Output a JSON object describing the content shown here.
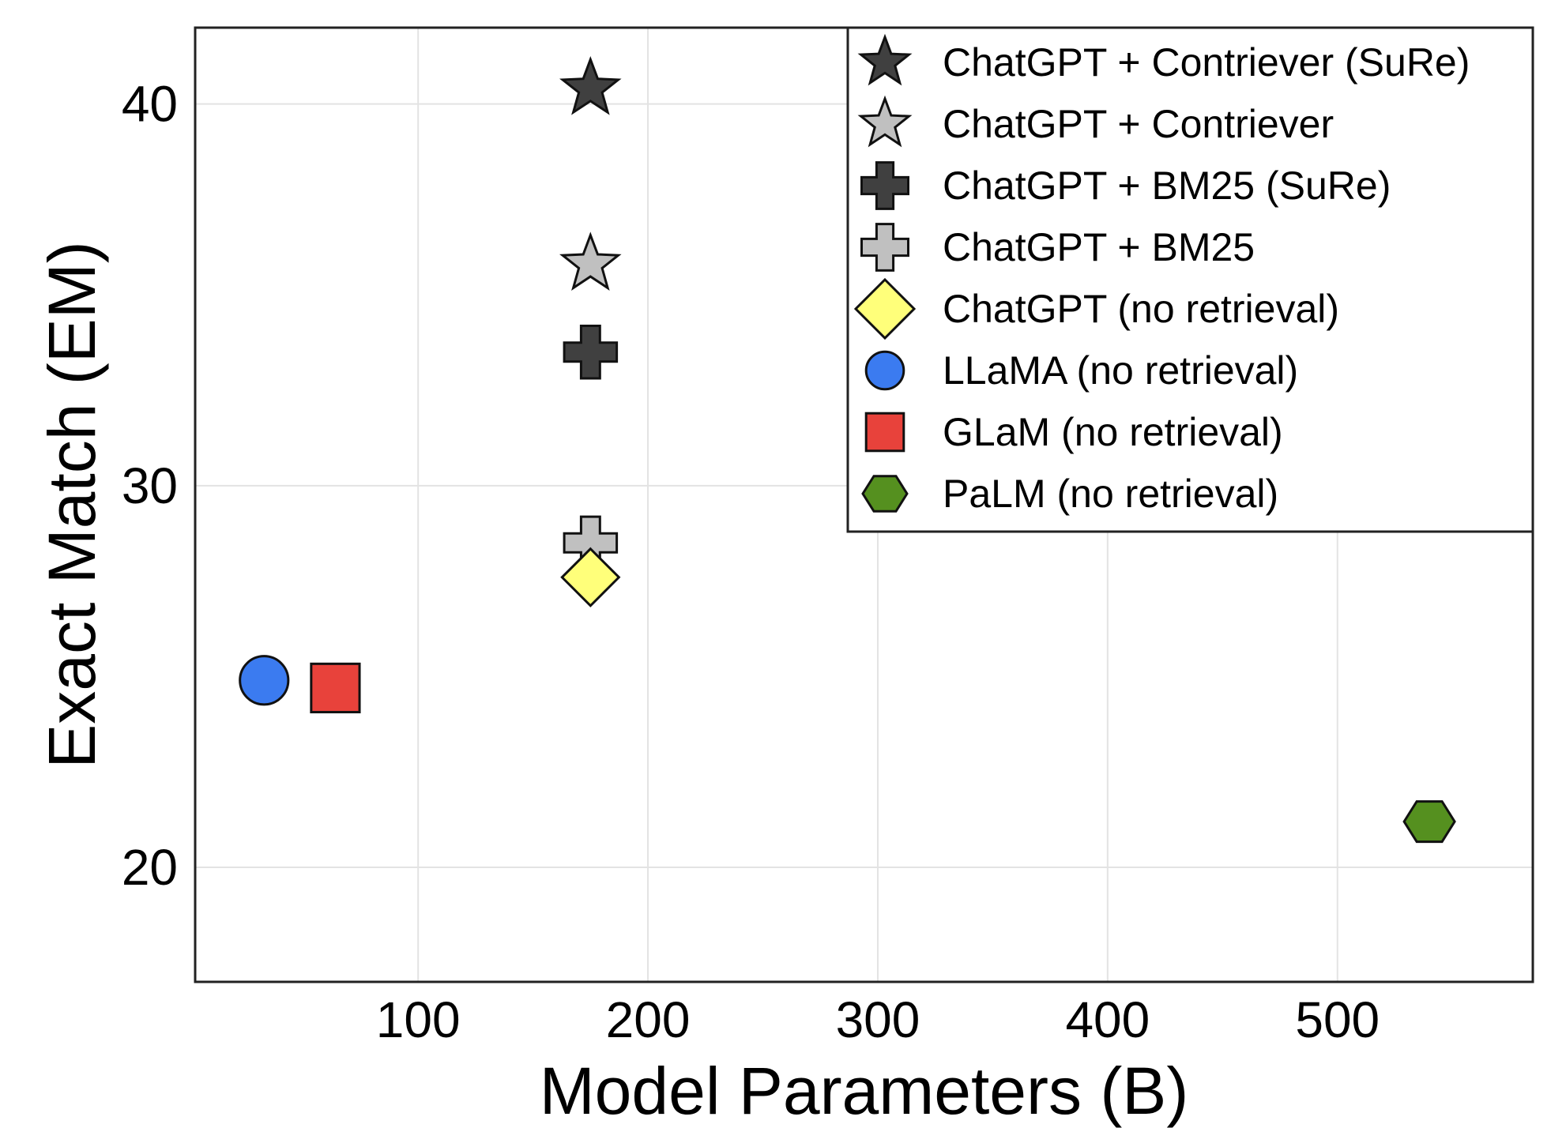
{
  "chart_data": {
    "type": "scatter",
    "title": "",
    "xlabel": "Model Parameters (B)",
    "ylabel": "Exact Match (EM)",
    "xlim": [
      3,
      585
    ],
    "ylim": [
      17,
      42
    ],
    "xticks": [
      100,
      200,
      300,
      400,
      500
    ],
    "yticks": [
      20,
      30,
      40
    ],
    "grid": true,
    "legend_position": "top-right",
    "series": [
      {
        "name": "ChatGPT + Contriever (SuRe)",
        "marker": "star",
        "color": "#404040",
        "x": [
          175
        ],
        "y": [
          40.4
        ]
      },
      {
        "name": "ChatGPT + Contriever",
        "marker": "star",
        "color": "#c0c0c0",
        "x": [
          175
        ],
        "y": [
          35.8
        ]
      },
      {
        "name": "ChatGPT + BM25 (SuRe)",
        "marker": "plus",
        "color": "#404040",
        "x": [
          175
        ],
        "y": [
          33.5
        ]
      },
      {
        "name": "ChatGPT + BM25",
        "marker": "plus",
        "color": "#c0c0c0",
        "x": [
          175
        ],
        "y": [
          28.5
        ]
      },
      {
        "name": "ChatGPT (no retrieval)",
        "marker": "diamond",
        "color": "#ffff7a",
        "x": [
          175
        ],
        "y": [
          27.6
        ]
      },
      {
        "name": "LLaMA (no retrieval)",
        "marker": "circle",
        "color": "#3b7bf0",
        "x": [
          33
        ],
        "y": [
          24.9
        ]
      },
      {
        "name": "GLaM (no retrieval)",
        "marker": "square",
        "color": "#e8423b",
        "x": [
          64
        ],
        "y": [
          24.7
        ]
      },
      {
        "name": "PaLM (no retrieval)",
        "marker": "hexagon",
        "color": "#55901f",
        "x": [
          540
        ],
        "y": [
          21.2
        ]
      }
    ]
  }
}
